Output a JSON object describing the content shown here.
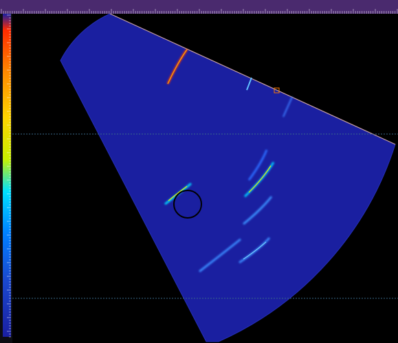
{
  "ruler": {
    "labels": [
      "",
      "",
      "",
      "",
      "",
      "",
      "",
      "",
      "",
      "",
      "",
      "",
      "",
      "",
      "",
      "",
      "",
      ""
    ]
  },
  "arc_labels": [
    "",
    "",
    "",
    "",
    "",
    "",
    ""
  ],
  "readout": {
    "line1": "",
    "line2": ""
  },
  "colors": {
    "sector_fill": "#1a1fa0",
    "ruler_bg": "#4a2a6e",
    "guide_line": "#3a6a8a",
    "background": "#000000"
  },
  "palette": [
    "#ff2a00",
    "#ff8800",
    "#ffd400",
    "#c8f000",
    "#00e0ff",
    "#0080ff",
    "#1a1fa0"
  ]
}
